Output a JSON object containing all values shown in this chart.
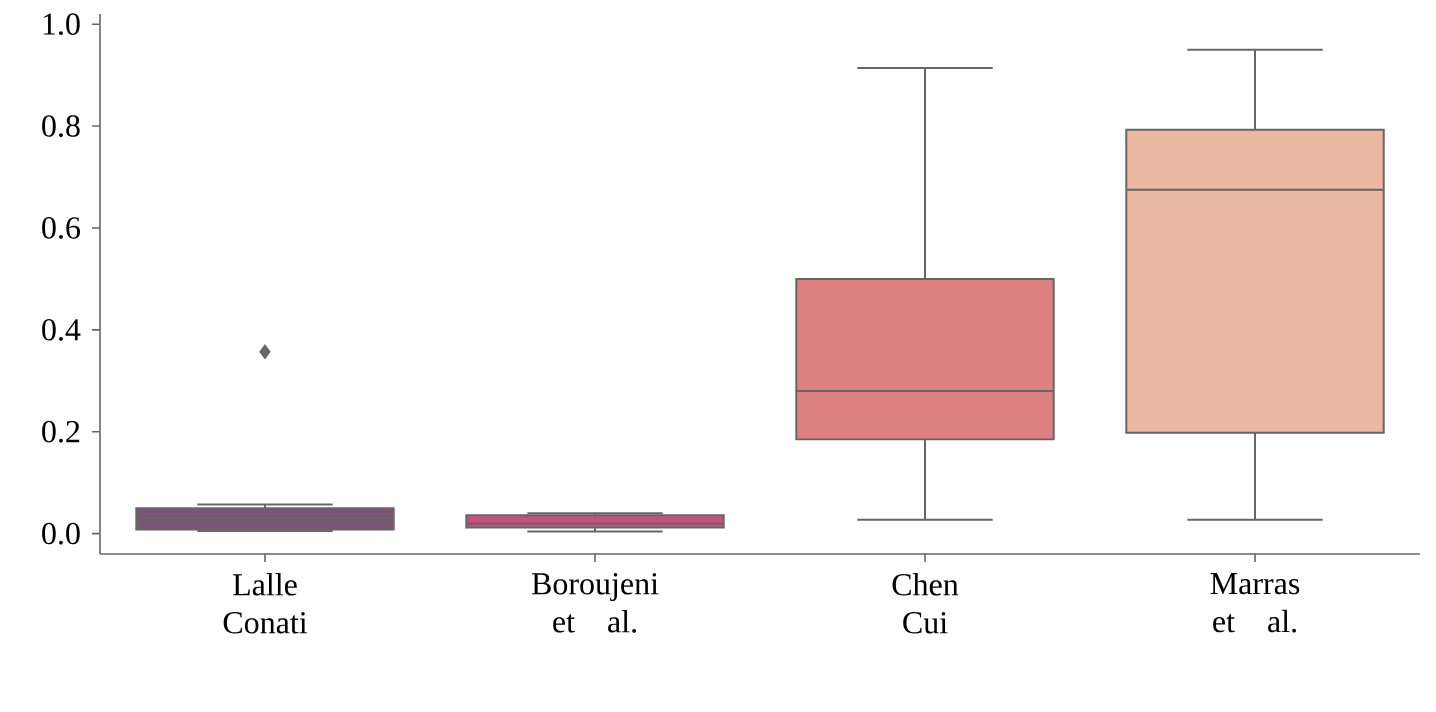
{
  "chart_data": {
    "type": "box",
    "categories": [
      "Lalle Conati",
      "Boroujeni et al.",
      "Chen Cui",
      "Marras et al."
    ],
    "colors": [
      "#7a5578",
      "#c8507f",
      "#dd8080",
      "#ebb9a2"
    ],
    "boxes": [
      {
        "low": 0.005,
        "q1": 0.008,
        "median": 0.03,
        "q3": 0.05,
        "high": 0.057,
        "outliers": [
          0.357
        ]
      },
      {
        "low": 0.004,
        "q1": 0.012,
        "median": 0.02,
        "q3": 0.036,
        "high": 0.04
      },
      {
        "low": 0.027,
        "q1": 0.185,
        "median": 0.28,
        "q3": 0.5,
        "high": 0.914
      },
      {
        "low": 0.027,
        "q1": 0.198,
        "median": 0.675,
        "q3": 0.793,
        "high": 0.95
      }
    ],
    "ylim": [
      -0.04,
      1.02
    ],
    "yticks": [
      {
        "value": 0,
        "label": "0.0"
      },
      {
        "value": 0.2,
        "label": "0.2"
      },
      {
        "value": 0.4,
        "label": "0.4"
      },
      {
        "value": 0.6,
        "label": "0.6"
      },
      {
        "value": 0.8,
        "label": "0.8"
      },
      {
        "value": 1.0,
        "label": "1.0"
      }
    ],
    "grid": false,
    "marker": "diamond"
  }
}
